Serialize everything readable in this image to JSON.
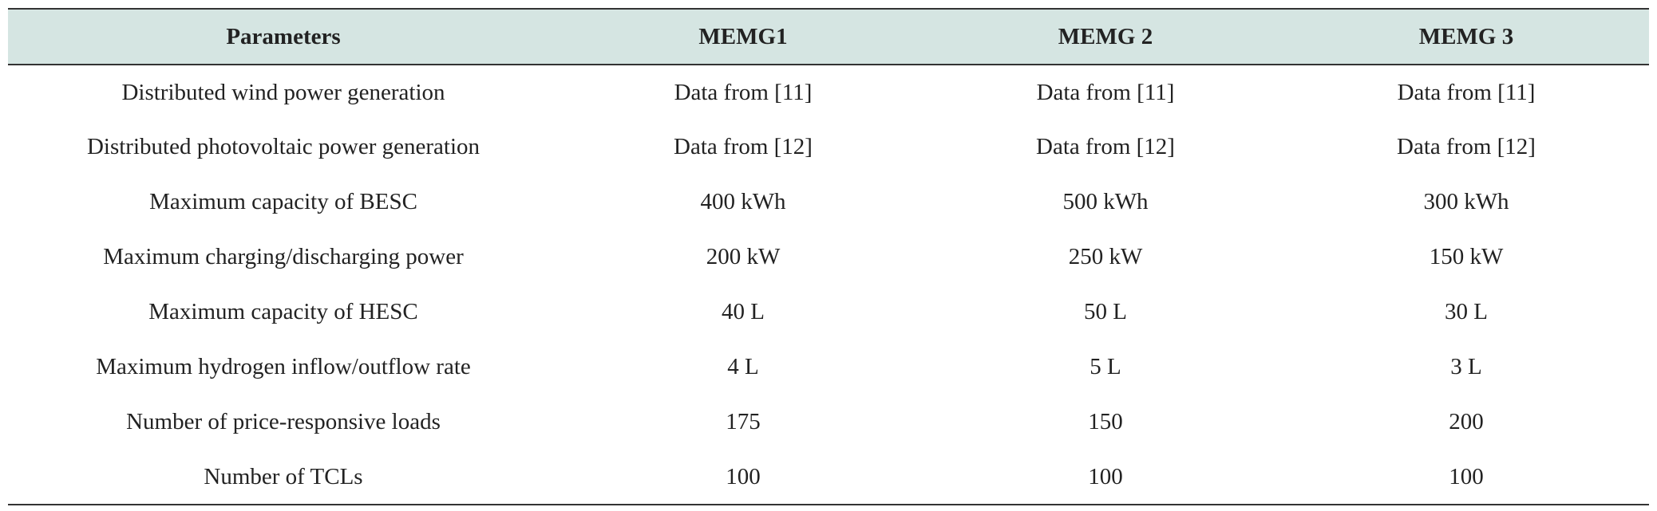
{
  "table": {
    "columns": [
      "Parameters",
      "MEMG1",
      "MEMG 2",
      "MEMG 3"
    ],
    "rows": [
      [
        "Distributed wind power generation",
        "Data from [11]",
        "Data from [11]",
        "Data from [11]"
      ],
      [
        "Distributed photovoltaic power generation",
        "Data from [12]",
        "Data from [12]",
        "Data from [12]"
      ],
      [
        "Maximum capacity of BESC",
        "400 kWh",
        "500 kWh",
        "300 kWh"
      ],
      [
        "Maximum charging/discharging power",
        "200 kW",
        "250 kW",
        "150 kW"
      ],
      [
        "Maximum capacity of HESC",
        "40 L",
        "50 L",
        "30 L"
      ],
      [
        "Maximum hydrogen inflow/outflow rate",
        "4 L",
        "5 L",
        "3 L"
      ],
      [
        "Number of price-responsive loads",
        "175",
        "150",
        "200"
      ],
      [
        "Number of TCLs",
        "100",
        "100",
        "100"
      ]
    ]
  }
}
